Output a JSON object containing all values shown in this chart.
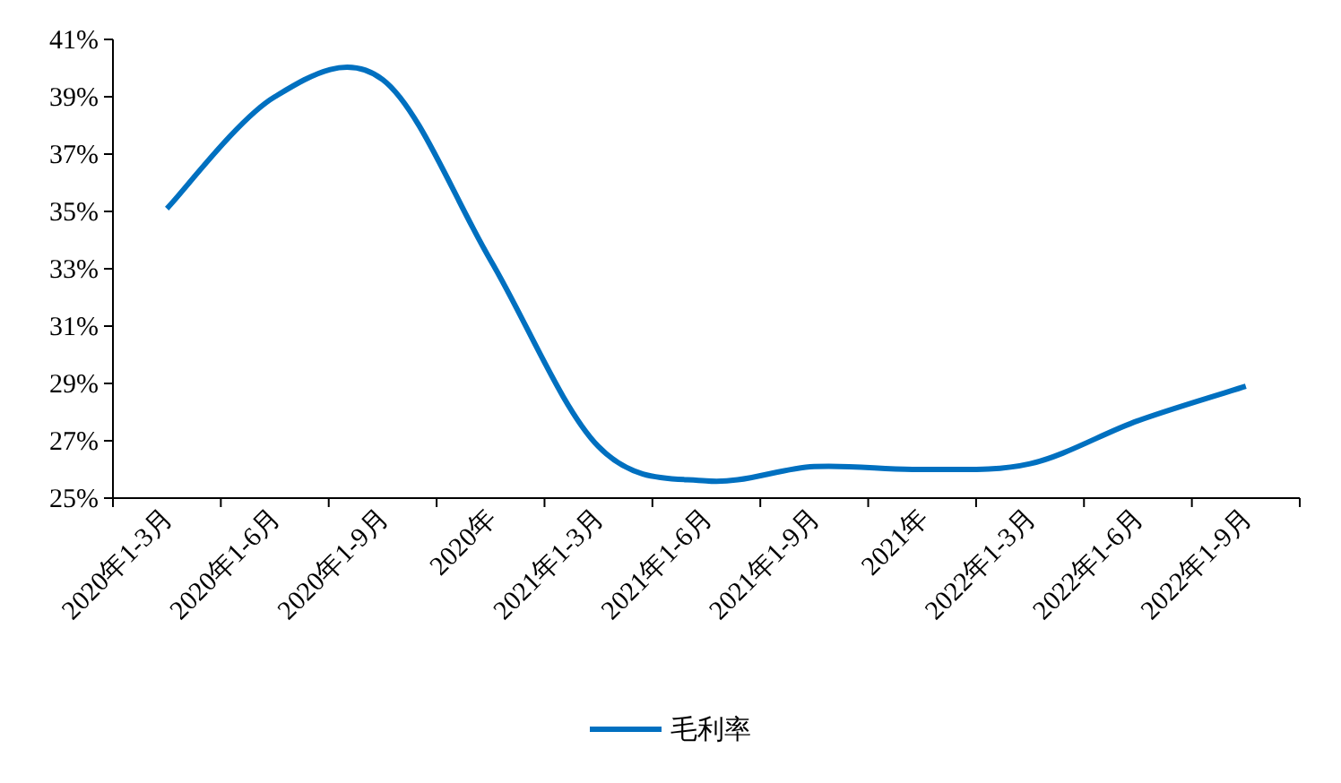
{
  "chart_data": {
    "type": "line",
    "categories": [
      "2020年1-3月",
      "2020年1-6月",
      "2020年1-9月",
      "2020年",
      "2021年1-3月",
      "2021年1-6月",
      "2021年1-9月",
      "2021年",
      "2022年1-3月",
      "2022年1-6月",
      "2022年1-9月"
    ],
    "series": [
      {
        "name": "毛利率",
        "color": "#0070c0",
        "values": [
          35.1,
          39.0,
          39.6,
          33.3,
          26.8,
          25.6,
          26.1,
          26.0,
          26.2,
          27.7,
          28.9
        ]
      }
    ],
    "ylim": [
      25,
      41
    ],
    "yticks": [
      {
        "value": 25,
        "label": "25%"
      },
      {
        "value": 27,
        "label": "27%"
      },
      {
        "value": 29,
        "label": "29%"
      },
      {
        "value": 31,
        "label": "31%"
      },
      {
        "value": 33,
        "label": "33%"
      },
      {
        "value": 35,
        "label": "35%"
      },
      {
        "value": 37,
        "label": "37%"
      },
      {
        "value": 39,
        "label": "39%"
      },
      {
        "value": 41,
        "label": "41%"
      }
    ],
    "legend": "bottom"
  }
}
